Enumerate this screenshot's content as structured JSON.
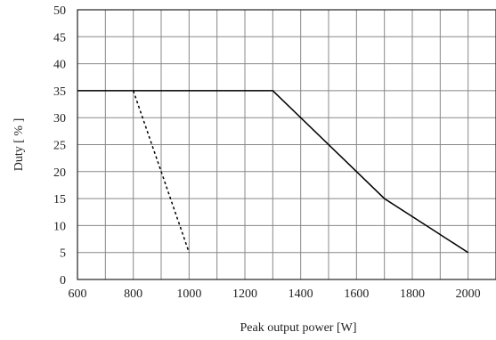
{
  "chart_data": {
    "type": "line",
    "title": "",
    "xlabel": "Peak output power [W]",
    "ylabel": "Duty [ % ]",
    "xlim": [
      600,
      2100
    ],
    "ylim": [
      0,
      50
    ],
    "x_ticks": [
      600,
      800,
      1000,
      1200,
      1400,
      1600,
      1800,
      2000
    ],
    "y_ticks": [
      0,
      5,
      10,
      15,
      20,
      25,
      30,
      35,
      40,
      45,
      50
    ],
    "grid": true,
    "series": [
      {
        "style": "solid",
        "color": "#000000",
        "points": [
          [
            600,
            35
          ],
          [
            1300,
            35
          ],
          [
            1700,
            15
          ],
          [
            2000,
            5
          ]
        ]
      },
      {
        "style": "dashed",
        "color": "#000000",
        "points": [
          [
            800,
            35
          ],
          [
            1000,
            5
          ]
        ]
      }
    ]
  }
}
